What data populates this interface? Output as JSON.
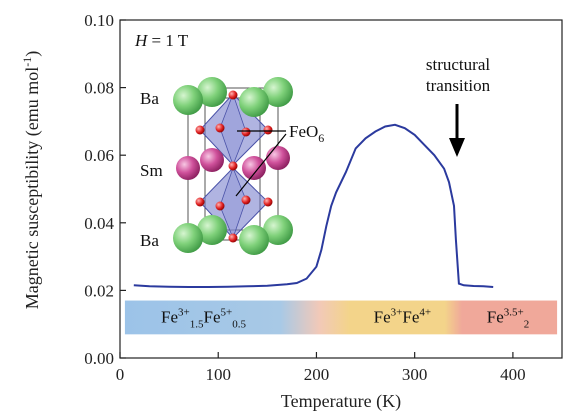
{
  "chart_data": {
    "type": "line",
    "xlabel": "Temperature (K)",
    "ylabel": "Magnetic susceptibility (emu mol",
    "ylabel_sup": "-1",
    "ylabel_close": ")",
    "xlim": [
      0,
      450
    ],
    "ylim": [
      0.0,
      0.1
    ],
    "xticks": [
      0,
      100,
      200,
      300,
      400
    ],
    "yticks": [
      0.0,
      0.02,
      0.04,
      0.06,
      0.08,
      0.1
    ],
    "ytick_labels": [
      "0.00",
      "0.02",
      "0.04",
      "0.06",
      "0.08",
      "0.10"
    ],
    "grid": false,
    "line_color": "#2b3a9e",
    "series": [
      {
        "x": [
          14,
          30,
          50,
          70,
          90,
          110,
          130,
          150,
          170,
          180,
          190,
          200,
          205,
          210,
          215,
          220,
          230,
          240,
          250,
          260,
          270,
          280,
          290,
          300,
          310,
          320,
          330,
          335,
          340,
          342,
          345,
          350,
          360,
          370,
          380
        ],
        "values": [
          0.0215,
          0.0212,
          0.0211,
          0.021,
          0.021,
          0.0211,
          0.0212,
          0.0214,
          0.0218,
          0.0222,
          0.0235,
          0.027,
          0.032,
          0.039,
          0.045,
          0.049,
          0.055,
          0.062,
          0.065,
          0.067,
          0.0685,
          0.069,
          0.068,
          0.066,
          0.063,
          0.06,
          0.056,
          0.052,
          0.045,
          0.035,
          0.022,
          0.0215,
          0.0213,
          0.0212,
          0.021
        ]
      }
    ],
    "annotations": {
      "field": "H = 1 T",
      "field_var": "H",
      "field_rest": " = 1 T",
      "transition_line1": "structural",
      "transition_line2": "transition",
      "transition_x": 340,
      "transition_y": 0.059
    },
    "inset": {
      "labels": [
        "Ba",
        "Sm",
        "Ba"
      ],
      "polyhedron_label": "FeO",
      "polyhedron_sub": "6"
    },
    "bands": [
      {
        "text_main": "Fe",
        "sup1": "3+",
        "sub1": "1.5",
        "text2": "Fe",
        "sup2": "5+",
        "sub2": "0.5",
        "x0": 5,
        "x1": 165,
        "color": "#9cc3e8"
      },
      {
        "text_main": "Fe",
        "sup1": "3+",
        "text2": "Fe",
        "sup2": "4+",
        "x0": 235,
        "x1": 340,
        "color": "#f3d48a"
      },
      {
        "text_main": "Fe",
        "sup1": "3.5+",
        "sub1": "2",
        "x0": 345,
        "x1": 445,
        "color": "#f0a89a"
      }
    ],
    "band_y": [
      0.007,
      0.017
    ]
  }
}
